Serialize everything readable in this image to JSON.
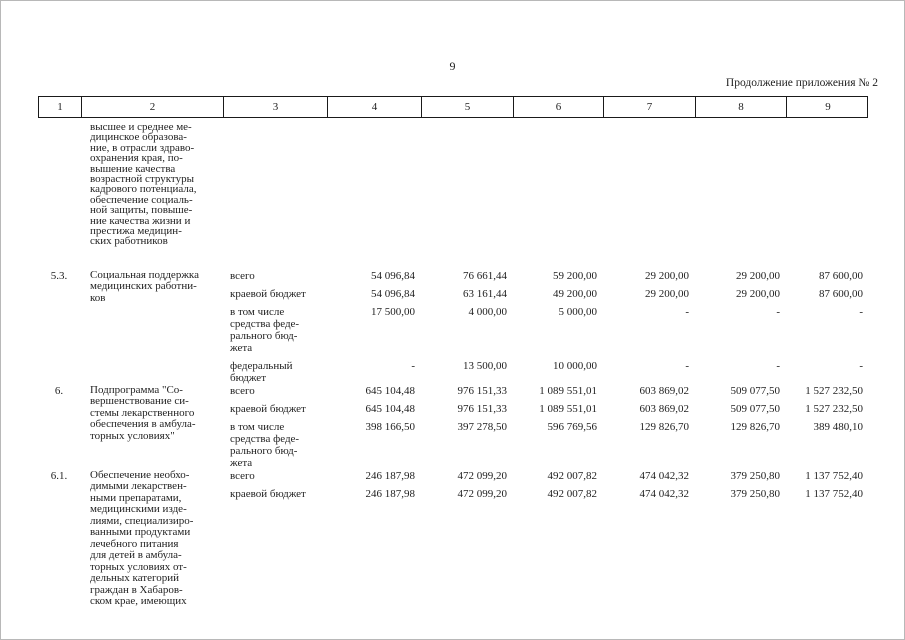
{
  "page": {
    "number": "9",
    "appendix_note": "Продолжение приложения № 2"
  },
  "table": {
    "column_numbers": [
      "1",
      "2",
      "3",
      "4",
      "5",
      "6",
      "7",
      "8",
      "9"
    ],
    "rows": [
      {
        "num": "",
        "name": "высшее и среднее ме-\nдицинское образова-\nние, в отрасли здраво-\nохранения края, по-\nвышение качества\nвозрастной структуры\nкадрового потенциала,\nобеспечение социаль-\nной защиты, повыше-\nние качества жизни и\nпрестижа медицин-\nских работников",
        "subrows": []
      },
      {
        "num": "5.3.",
        "name": "Социальная поддержка\nмедицинских работни-\nков",
        "subrows": [
          {
            "label": "всего",
            "values": [
              "54 096,84",
              "76 661,44",
              "59 200,00",
              "29 200,00",
              "29 200,00",
              "87 600,00"
            ]
          },
          {
            "label": "краевой бюджет",
            "values": [
              "54 096,84",
              "63 161,44",
              "49 200,00",
              "29 200,00",
              "29 200,00",
              "87 600,00"
            ]
          },
          {
            "label": "в том числе\nсредства феде-\nрального бюд-\nжета",
            "values": [
              "17 500,00",
              "4 000,00",
              "5 000,00",
              "-",
              "-",
              "-"
            ]
          },
          {
            "label": "федеральный\nбюджет",
            "values": [
              "-",
              "13 500,00",
              "10 000,00",
              "-",
              "-",
              "-"
            ]
          }
        ]
      },
      {
        "num": "6.",
        "name": "Подпрограмма \"Со-\nвершенствование си-\nстемы лекарственного\nобеспечения в амбула-\nторных условиях\"",
        "subrows": [
          {
            "label": "всего",
            "values": [
              "645 104,48",
              "976 151,33",
              "1 089 551,01",
              "603 869,02",
              "509 077,50",
              "1 527 232,50"
            ]
          },
          {
            "label": "краевой бюджет",
            "values": [
              "645 104,48",
              "976 151,33",
              "1 089 551,01",
              "603 869,02",
              "509 077,50",
              "1 527 232,50"
            ]
          },
          {
            "label": "в том числе\nсредства феде-\nрального бюд-\nжета",
            "values": [
              "398 166,50",
              "397 278,50",
              "596 769,56",
              "129 826,70",
              "129 826,70",
              "389 480,10"
            ]
          }
        ]
      },
      {
        "num": "6.1.",
        "name": "Обеспечение необхо-\nдимыми лекарствен-\nными препаратами,\nмедицинскими изде-\nлиями, специализиро-\nванными продуктами\nлечебного питания\nдля детей в амбула-\nторных условиях от-\nдельных категорий\nграждан в Хабаров-\nском крае, имеющих",
        "subrows": [
          {
            "label": "всего",
            "values": [
              "246 187,98",
              "472 099,20",
              "492 007,82",
              "474 042,32",
              "379 250,80",
              "1 137 752,40"
            ]
          },
          {
            "label": "краевой бюджет",
            "values": [
              "246 187,98",
              "472 099,20",
              "492 007,82",
              "474 042,32",
              "379 250,80",
              "1 137 752,40"
            ]
          }
        ]
      }
    ]
  }
}
